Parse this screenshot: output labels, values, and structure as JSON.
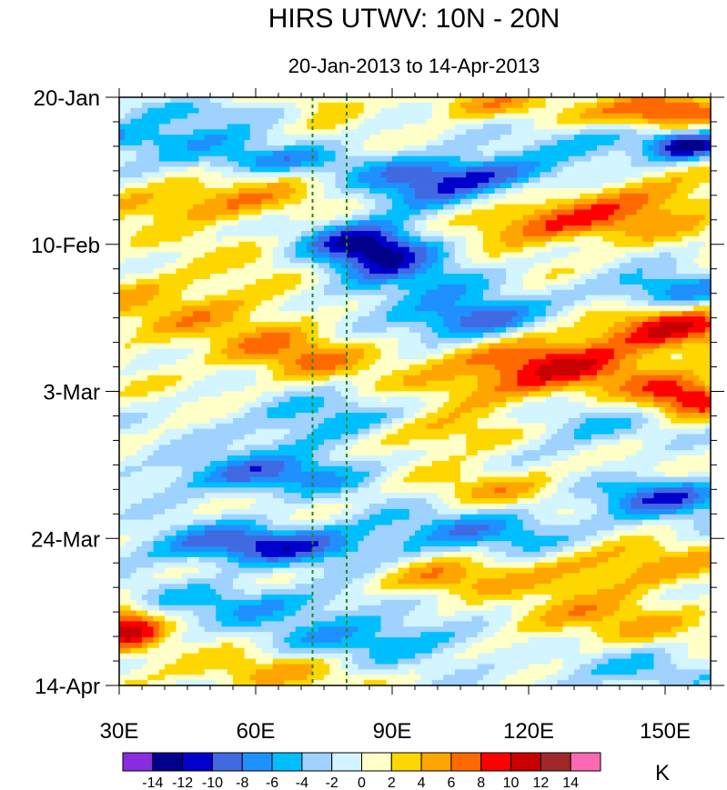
{
  "chart_data": {
    "type": "heatmap",
    "title": "HIRS UTWV: 10N - 20N",
    "subtitle": "20-Jan-2013 to 14-Apr-2013",
    "x_axis": {
      "range": [
        30,
        160
      ],
      "ticks": [
        30,
        60,
        90,
        120,
        150
      ],
      "tick_labels": [
        "30E",
        "60E",
        "90E",
        "120E",
        "150E"
      ]
    },
    "y_axis": {
      "range_days": [
        0,
        84
      ],
      "ticks_days": [
        0,
        21,
        42,
        63,
        84
      ],
      "tick_labels": [
        "20-Jan",
        "10-Feb",
        "3-Mar",
        "24-Mar",
        "14-Apr"
      ]
    },
    "reference_lines_lon": [
      72.5,
      80
    ],
    "colorbar": {
      "unit": "K",
      "levels": [
        -14,
        -12,
        -10,
        -8,
        -6,
        -4,
        -2,
        0,
        2,
        4,
        6,
        8,
        10,
        12,
        14
      ],
      "level_labels": [
        "-14",
        "-12",
        "-10",
        "-8",
        "-6",
        "-4",
        "-2",
        "0",
        "2",
        "4",
        "6",
        "8",
        "10",
        "12",
        "14"
      ],
      "colors": [
        "#8a2be2",
        "#00008b",
        "#0000cd",
        "#4169e1",
        "#1e90ff",
        "#00bfff",
        "#a0d2ff",
        "#d2f5ff",
        "#ffffc8",
        "#ffd700",
        "#ffa500",
        "#ff6a00",
        "#ff0000",
        "#c80000",
        "#a02828",
        "#ff69b4"
      ]
    },
    "features": [
      {
        "lon": 30,
        "day": 6,
        "sigma_lon": 18,
        "sigma_day": 1.6,
        "value": -7
      },
      {
        "lon": 60,
        "day": 9,
        "sigma_lon": 15,
        "sigma_day": 1.4,
        "value": -6
      },
      {
        "lon": 55,
        "day": 2,
        "sigma_lon": 14,
        "sigma_day": 1.2,
        "value": -4
      },
      {
        "lon": 75,
        "day": 1,
        "sigma_lon": 6,
        "sigma_day": 1.5,
        "value": 4
      },
      {
        "lon": 110,
        "day": 1,
        "sigma_lon": 12,
        "sigma_day": 1.5,
        "value": 4
      },
      {
        "lon": 150,
        "day": 2,
        "sigma_lon": 10,
        "sigma_day": 1.8,
        "value": 11
      },
      {
        "lon": 155,
        "day": 7,
        "sigma_lon": 6,
        "sigma_day": 1.5,
        "value": -12
      },
      {
        "lon": 140,
        "day": 6,
        "sigma_lon": 12,
        "sigma_day": 2.0,
        "value": -5
      },
      {
        "lon": 110,
        "day": 11,
        "sigma_lon": 12,
        "sigma_day": 2.0,
        "value": -9
      },
      {
        "lon": 95,
        "day": 13,
        "sigma_lon": 10,
        "sigma_day": 3.0,
        "value": -6
      },
      {
        "lon": 50,
        "day": 15,
        "sigma_lon": 16,
        "sigma_day": 2.0,
        "value": 6
      },
      {
        "lon": 125,
        "day": 18,
        "sigma_lon": 16,
        "sigma_day": 2.2,
        "value": 8
      },
      {
        "lon": 150,
        "day": 14,
        "sigma_lon": 12,
        "sigma_day": 2.5,
        "value": 5
      },
      {
        "lon": 85,
        "day": 21,
        "sigma_lon": 9,
        "sigma_day": 2.5,
        "value": -11
      },
      {
        "lon": 90,
        "day": 26,
        "sigma_lon": 14,
        "sigma_day": 4.0,
        "value": -6
      },
      {
        "lon": 108,
        "day": 32,
        "sigma_lon": 10,
        "sigma_day": 2.0,
        "value": -10
      },
      {
        "lon": 150,
        "day": 28,
        "sigma_lon": 12,
        "sigma_day": 2.0,
        "value": -8
      },
      {
        "lon": 150,
        "day": 33,
        "sigma_lon": 12,
        "sigma_day": 2.5,
        "value": 10
      },
      {
        "lon": 50,
        "day": 30,
        "sigma_lon": 22,
        "sigma_day": 5.0,
        "value": 4
      },
      {
        "lon": 122,
        "day": 39,
        "sigma_lon": 16,
        "sigma_day": 3.0,
        "value": 10
      },
      {
        "lon": 70,
        "day": 37,
        "sigma_lon": 10,
        "sigma_day": 2.5,
        "value": 5
      },
      {
        "lon": 155,
        "day": 43,
        "sigma_lon": 8,
        "sigma_day": 2.0,
        "value": 9
      },
      {
        "lon": 100,
        "day": 48,
        "sigma_lon": 14,
        "sigma_day": 2.0,
        "value": 6
      },
      {
        "lon": 75,
        "day": 47,
        "sigma_lon": 14,
        "sigma_day": 3.0,
        "value": -6
      },
      {
        "lon": 130,
        "day": 47,
        "sigma_lon": 12,
        "sigma_day": 2.5,
        "value": -5
      },
      {
        "lon": 60,
        "day": 54,
        "sigma_lon": 16,
        "sigma_day": 2.0,
        "value": -8
      },
      {
        "lon": 150,
        "day": 57,
        "sigma_lon": 12,
        "sigma_day": 2.0,
        "value": -9
      },
      {
        "lon": 115,
        "day": 56,
        "sigma_lon": 14,
        "sigma_day": 2.0,
        "value": 4
      },
      {
        "lon": 60,
        "day": 64,
        "sigma_lon": 18,
        "sigma_day": 2.0,
        "value": -10
      },
      {
        "lon": 110,
        "day": 62,
        "sigma_lon": 20,
        "sigma_day": 2.5,
        "value": -6
      },
      {
        "lon": 140,
        "day": 67,
        "sigma_lon": 14,
        "sigma_day": 2.5,
        "value": 6
      },
      {
        "lon": 100,
        "day": 69,
        "sigma_lon": 10,
        "sigma_day": 2.0,
        "value": 6
      },
      {
        "lon": 60,
        "day": 72,
        "sigma_lon": 20,
        "sigma_day": 2.0,
        "value": -5
      },
      {
        "lon": 32,
        "day": 76,
        "sigma_lon": 5,
        "sigma_day": 2.5,
        "value": 10
      },
      {
        "lon": 130,
        "day": 75,
        "sigma_lon": 18,
        "sigma_day": 2.5,
        "value": 5
      },
      {
        "lon": 90,
        "day": 77,
        "sigma_lon": 20,
        "sigma_day": 2.5,
        "value": -6
      },
      {
        "lon": 60,
        "day": 82,
        "sigma_lon": 16,
        "sigma_day": 2.0,
        "value": 4
      },
      {
        "lon": 140,
        "day": 82,
        "sigma_lon": 14,
        "sigma_day": 2.0,
        "value": -4
      }
    ]
  }
}
